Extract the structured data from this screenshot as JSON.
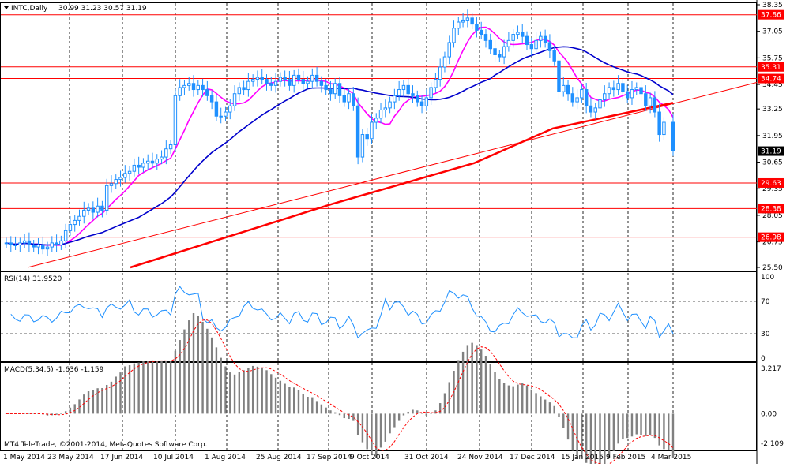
{
  "main_panel": {
    "symbol_label": "INTC,Daily",
    "ohlc_text": "30.99 31.23 30.57 31.19",
    "price_ticks": [
      "38.35",
      "37.05",
      "35.75",
      "34.45",
      "33.25",
      "31.95",
      "30.65",
      "29.35",
      "28.05",
      "26.75",
      "25.50"
    ],
    "current_price_label": "31.19",
    "levels": [
      "37.86",
      "35.31",
      "34.74",
      "29.63",
      "28.38",
      "26.98"
    ],
    "colors": {
      "level": "#ff0000",
      "ma_fast": "#ff00ff",
      "ma_mid": "#0000cc",
      "ma_slow": "#ff0000",
      "candle": "#1e90ff"
    }
  },
  "rsi_panel": {
    "label": "RSI(14) 31.9520",
    "ticks": [
      "100",
      "70",
      "30",
      "0"
    ],
    "color": "#1e90ff"
  },
  "macd_panel": {
    "label": "MACD(5,34,5) -1.636 -1.159",
    "ticks": [
      "3.217",
      "0.00",
      "-2.109"
    ],
    "signal_color": "#ff0000"
  },
  "footer": {
    "copyright": "MT4 TeleTrade, ©2001-2014, MetaQuotes Software Corp.",
    "dates": [
      "1 May 2014",
      "23 May 2014",
      "17 Jun 2014",
      "10 Jul 2014",
      "1 Aug 2014",
      "25 Aug 2014",
      "17 Sep 2014",
      "9 Oct 2014",
      "31 Oct 2014",
      "24 Nov 2014",
      "17 Dec 2014",
      "15 Jan 2015",
      "9 Feb 2015",
      "4 Mar 2015"
    ]
  },
  "chart_data": {
    "type": "candlestick",
    "series_closes": [
      26.7,
      26.6,
      26.6,
      26.7,
      26.8,
      26.6,
      26.5,
      26.6,
      26.4,
      26.5,
      26.7,
      26.6,
      26.8,
      27.3,
      27.6,
      27.8,
      28.0,
      28.3,
      28.4,
      28.2,
      28.5,
      28.3,
      29.5,
      29.6,
      29.8,
      29.9,
      30.1,
      30.2,
      30.5,
      30.4,
      30.6,
      30.7,
      30.6,
      30.8,
      30.9,
      31.3,
      31.5,
      33.9,
      34.3,
      34.4,
      34.5,
      34.2,
      34.4,
      34.2,
      33.9,
      33.6,
      32.9,
      32.9,
      33.1,
      33.4,
      34.0,
      34.3,
      34.2,
      34.6,
      34.7,
      34.8,
      34.7,
      34.5,
      34.4,
      34.6,
      34.8,
      34.7,
      34.4,
      34.9,
      34.7,
      34.5,
      34.6,
      34.9,
      34.6,
      34.4,
      34.2,
      34.0,
      34.5,
      33.9,
      33.6,
      34.0,
      33.4,
      30.9,
      32.0,
      31.8,
      32.6,
      32.8,
      33.2,
      33.3,
      33.6,
      33.9,
      34.2,
      34.4,
      34.0,
      33.9,
      33.6,
      33.4,
      33.8,
      34.3,
      34.7,
      35.3,
      35.8,
      36.5,
      37.2,
      37.5,
      37.6,
      37.7,
      37.4,
      37.1,
      36.9,
      36.6,
      36.2,
      35.9,
      35.8,
      36.3,
      36.6,
      36.9,
      37.0,
      36.8,
      36.4,
      36.2,
      36.6,
      36.8,
      36.5,
      36.1,
      35.6,
      34.1,
      34.4,
      34.0,
      33.6,
      33.8,
      34.2,
      33.4,
      33.1,
      33.3,
      33.7,
      34.0,
      34.3,
      34.2,
      34.5,
      34.1,
      33.8,
      34.2,
      34.3,
      34.0,
      33.4,
      33.8,
      33.1,
      32.0,
      32.6,
      null,
      31.2
    ],
    "levels": [
      37.86,
      35.31,
      34.74,
      29.63,
      28.38,
      26.98
    ],
    "current_price": 31.19,
    "ma_fast_period_label": "",
    "rsi_last": 31.952,
    "macd": [
      -1.636,
      -1.159
    ],
    "ylim": [
      25.5,
      38.35
    ]
  }
}
